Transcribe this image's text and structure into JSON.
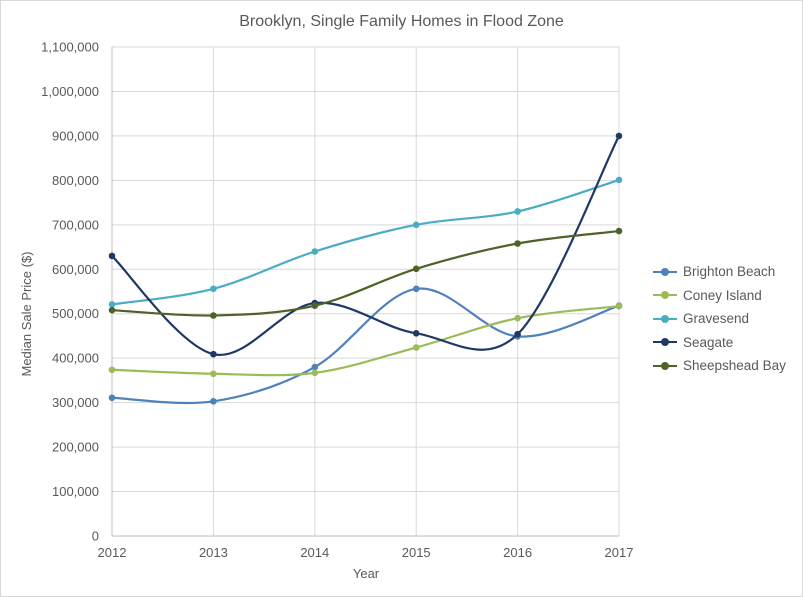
{
  "chart_data": {
    "type": "line",
    "title": "Brooklyn, Single Family Homes  in Flood Zone",
    "xlabel": "Year",
    "ylabel": "Median Sale Price ($)",
    "x": [
      "2012",
      "2013",
      "2014",
      "2015",
      "2016",
      "2017"
    ],
    "ylim": [
      0,
      1100000
    ],
    "yticks": [
      "0",
      "100,000",
      "200,000",
      "300,000",
      "400,000",
      "500,000",
      "600,000",
      "700,000",
      "800,000",
      "900,000",
      "1,000,000",
      "1,100,000"
    ],
    "grid": true,
    "legend_position": "right",
    "series": [
      {
        "name": "Brighton Beach",
        "color": "#4f81bd",
        "values": [
          311000,
          303000,
          380000,
          556000,
          449000,
          518000
        ]
      },
      {
        "name": "Coney Island",
        "color": "#9bbb59",
        "values": [
          374000,
          365000,
          367000,
          424000,
          490000,
          517000
        ]
      },
      {
        "name": "Gravesend",
        "color": "#4bacc6",
        "values": [
          521000,
          556000,
          640000,
          700000,
          730000,
          801000
        ]
      },
      {
        "name": "Seagate",
        "color": "#1f3864",
        "values": [
          630000,
          409000,
          524000,
          456000,
          454000,
          900000
        ]
      },
      {
        "name": "Sheepshead Bay",
        "color": "#4f6228",
        "values": [
          508000,
          496000,
          518000,
          601000,
          658000,
          686000
        ]
      }
    ]
  }
}
